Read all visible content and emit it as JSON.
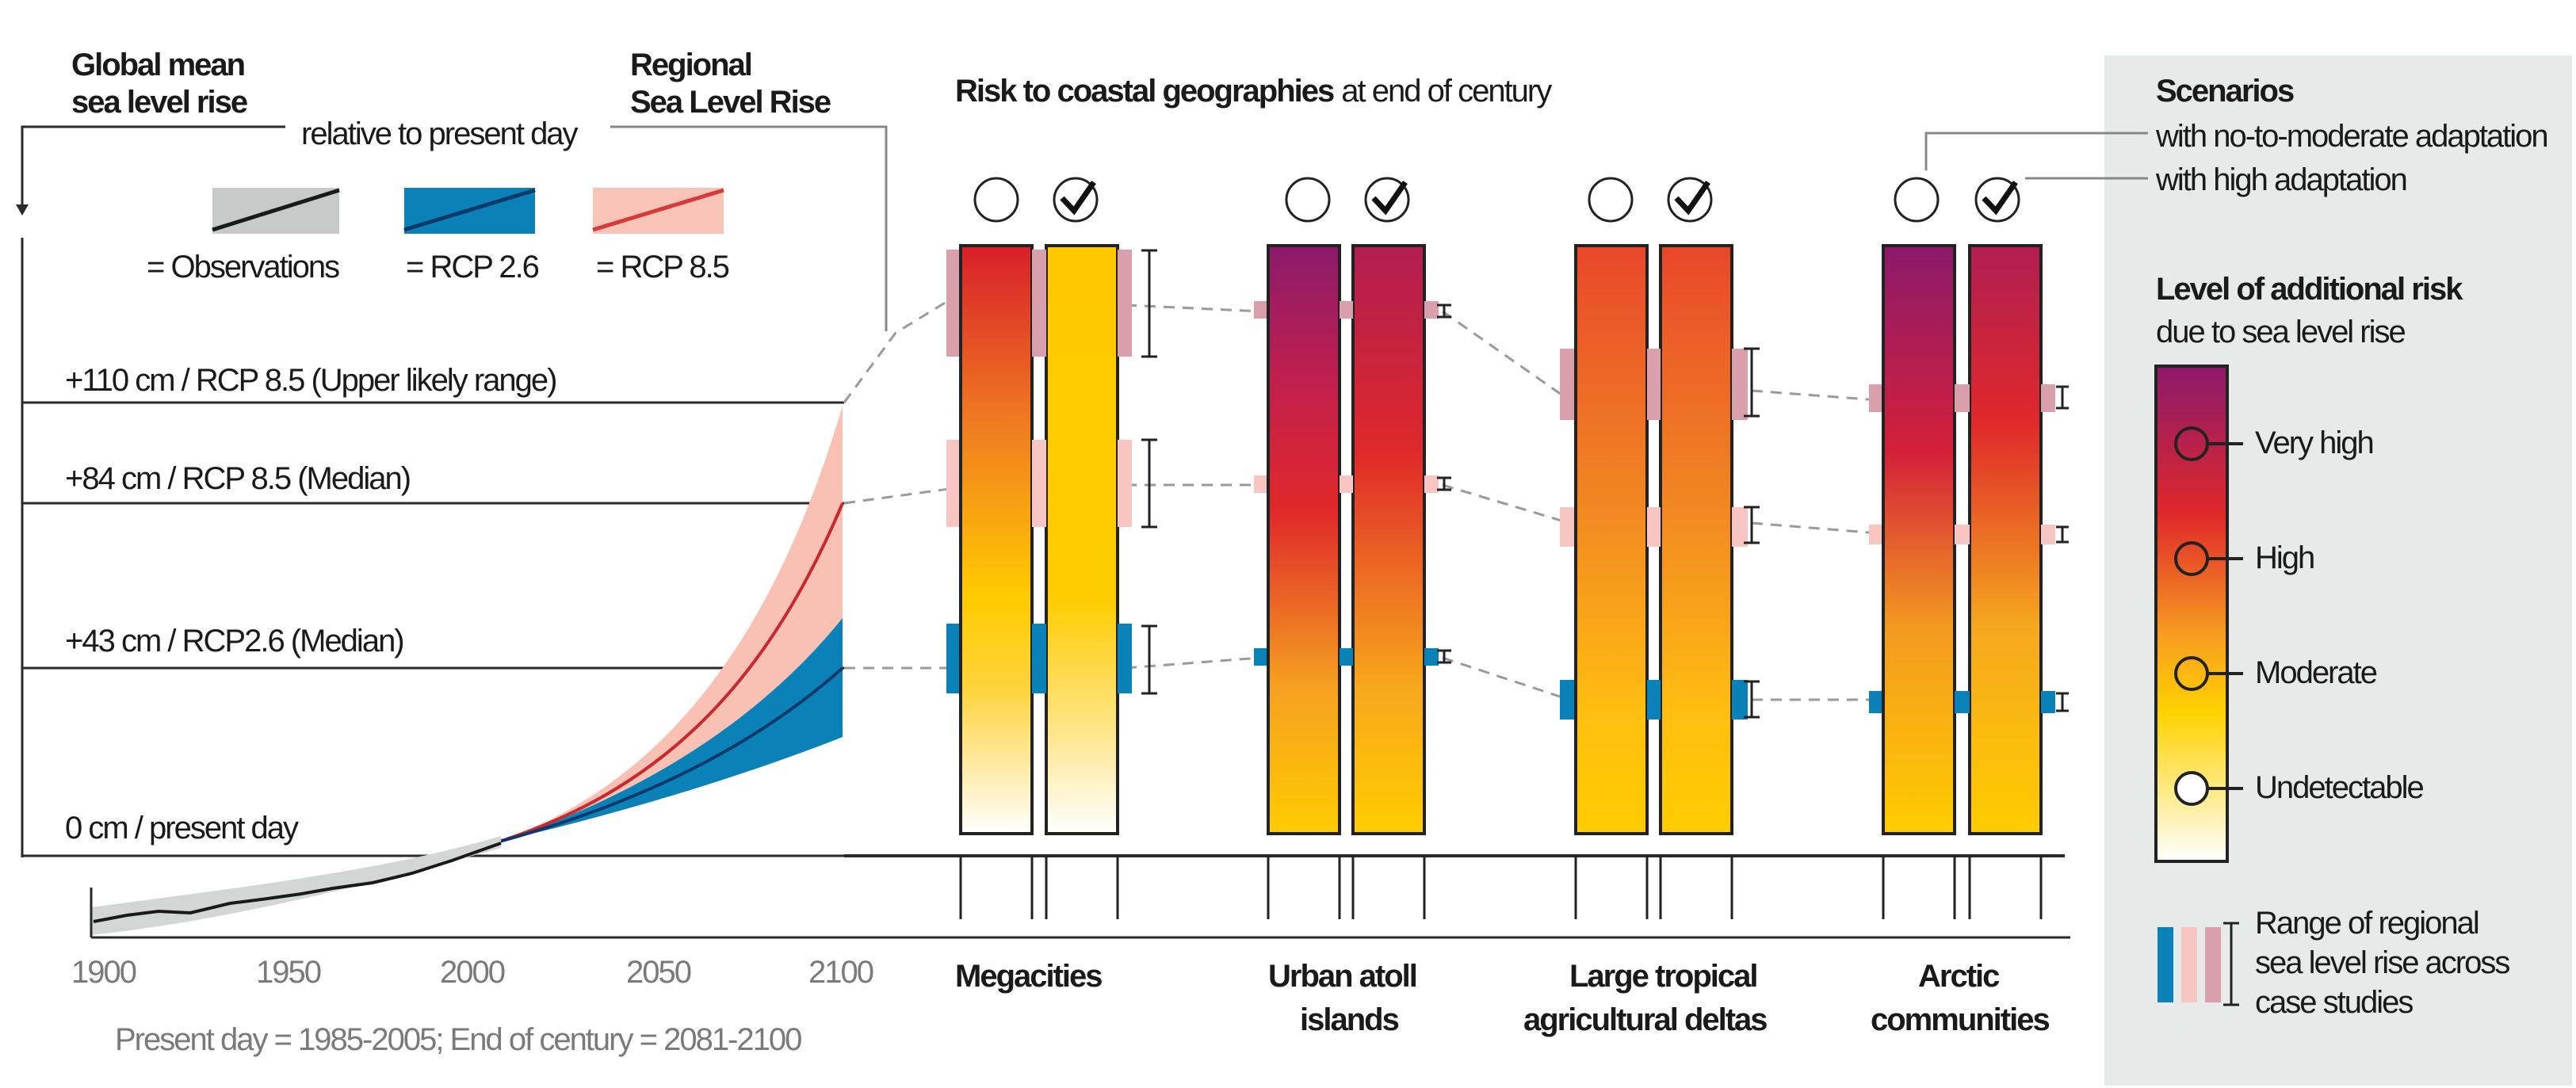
{
  "left_panel": {
    "title_line1": "Global mean",
    "title_line2": "sea level rise",
    "relative_note": "relative to present day",
    "regional_line1": "Regional",
    "regional_line2": "Sea Level Rise",
    "legend": {
      "observations": "= Observations",
      "rcp26": "= RCP 2.6",
      "rcp85": "= RCP 8.5"
    },
    "levels": {
      "upper": "+110 cm / RCP 8.5 (Upper likely range)",
      "median85": "+84  cm / RCP 8.5 (Median)",
      "median26": "+43 cm / RCP2.6 (Median)",
      "zero": "0 cm / present day"
    },
    "x_ticks": [
      "1900",
      "1950",
      "2000",
      "2050",
      "2100"
    ],
    "footnote": "Present day = 1985-2005; End of century = 2081-2100"
  },
  "middle_panel": {
    "title_bold": "Risk to coastal geographies",
    "title_rest": "at end of century",
    "geographies": [
      {
        "line1": "Megacities",
        "line2": ""
      },
      {
        "line1": "Urban atoll",
        "line2": "islands"
      },
      {
        "line1": "Large tropical",
        "line2": "agricultural deltas"
      },
      {
        "line1": "Arctic",
        "line2": "communities"
      }
    ]
  },
  "right_panel": {
    "scenarios_title": "Scenarios",
    "scenario_no_moderate": "with no-to-moderate adaptation",
    "scenario_high": "with high adaptation",
    "risk_title": "Level of additional risk",
    "risk_subtitle": "due to sea level rise",
    "risk_levels": [
      "Very high",
      "High",
      "Moderate",
      "Undetectable"
    ],
    "range_line1": "Range of  regional",
    "range_line2": "sea level rise across",
    "range_line3": "case studies"
  },
  "colors": {
    "observations": "#2a2a2a",
    "rcp26": "#0a82b8",
    "rcp85": "#e8473a",
    "rcp85_band": "#f7b3a6",
    "very_high": "#8b1a6b",
    "high": "#e0282a",
    "moderate": "#ffcc00",
    "undetectable": "#ffffff",
    "panel_bg": "#e8e9e9"
  }
}
